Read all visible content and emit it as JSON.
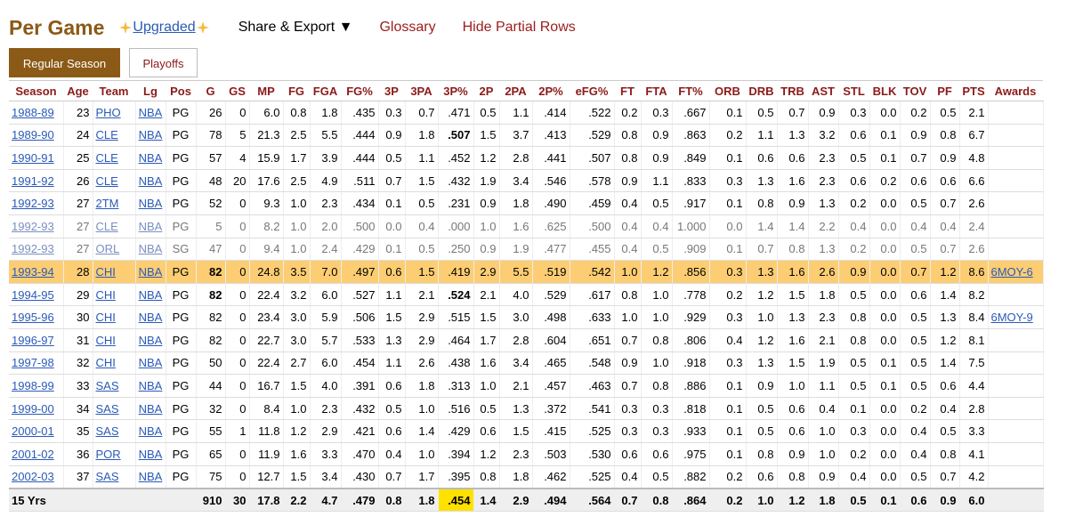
{
  "header": {
    "title": "Per Game",
    "upgraded": "Upgraded",
    "menu": [
      "Share & Export ▼",
      "Glossary",
      "Hide Partial Rows"
    ]
  },
  "tabs": [
    "Regular Season",
    "Playoffs"
  ],
  "table": {
    "columns": [
      "Season",
      "Age",
      "Team",
      "Lg",
      "Pos",
      "G",
      "GS",
      "MP",
      "FG",
      "FGA",
      "FG%",
      "3P",
      "3PA",
      "3P%",
      "2P",
      "2PA",
      "2P%",
      "eFG%",
      "FT",
      "FTA",
      "FT%",
      "ORB",
      "DRB",
      "TRB",
      "AST",
      "STL",
      "BLK",
      "TOV",
      "PF",
      "PTS",
      "Awards"
    ],
    "rows": [
      {
        "cells": [
          "1988-89",
          "23",
          "PHO",
          "NBA",
          "PG",
          "26",
          "0",
          "6.0",
          "0.8",
          "1.8",
          ".435",
          "0.3",
          "0.7",
          ".471",
          "0.5",
          "1.1",
          ".414",
          ".522",
          "0.2",
          "0.3",
          ".667",
          "0.1",
          "0.5",
          "0.7",
          "0.9",
          "0.3",
          "0.0",
          "0.2",
          "0.5",
          "2.1"
        ]
      },
      {
        "cells": [
          "1989-90",
          "24",
          "CLE",
          "NBA",
          "PG",
          "78",
          "5",
          "21.3",
          "2.5",
          "5.5",
          ".444",
          "0.9",
          "1.8",
          ".507",
          "1.5",
          "3.7",
          ".413",
          ".529",
          "0.8",
          "0.9",
          ".863",
          "0.2",
          "1.1",
          "1.3",
          "3.2",
          "0.6",
          "0.1",
          "0.9",
          "0.8",
          "6.7"
        ],
        "bold": [
          13
        ]
      },
      {
        "cells": [
          "1990-91",
          "25",
          "CLE",
          "NBA",
          "PG",
          "57",
          "4",
          "15.9",
          "1.7",
          "3.9",
          ".444",
          "0.5",
          "1.1",
          ".452",
          "1.2",
          "2.8",
          ".441",
          ".507",
          "0.8",
          "0.9",
          ".849",
          "0.1",
          "0.6",
          "0.6",
          "2.3",
          "0.5",
          "0.1",
          "0.7",
          "0.9",
          "4.8"
        ]
      },
      {
        "cells": [
          "1991-92",
          "26",
          "CLE",
          "NBA",
          "PG",
          "48",
          "20",
          "17.6",
          "2.5",
          "4.9",
          ".511",
          "0.7",
          "1.5",
          ".432",
          "1.9",
          "3.4",
          ".546",
          ".578",
          "0.9",
          "1.1",
          ".833",
          "0.3",
          "1.3",
          "1.6",
          "2.3",
          "0.6",
          "0.2",
          "0.6",
          "0.6",
          "6.6"
        ]
      },
      {
        "cells": [
          "1992-93",
          "27",
          "2TM",
          "NBA",
          "PG",
          "52",
          "0",
          "9.3",
          "1.0",
          "2.3",
          ".434",
          "0.1",
          "0.5",
          ".231",
          "0.9",
          "1.8",
          ".490",
          ".459",
          "0.4",
          "0.5",
          ".917",
          "0.1",
          "0.8",
          "0.9",
          "1.3",
          "0.2",
          "0.0",
          "0.5",
          "0.7",
          "2.6"
        ]
      },
      {
        "cells": [
          "1992-93",
          "27",
          "CLE",
          "NBA",
          "PG",
          "5",
          "0",
          "8.2",
          "1.0",
          "2.0",
          ".500",
          "0.0",
          "0.4",
          ".000",
          "1.0",
          "1.6",
          ".625",
          ".500",
          "0.4",
          "0.4",
          "1.000",
          "0.0",
          "1.4",
          "1.4",
          "2.2",
          "0.4",
          "0.0",
          "0.4",
          "0.4",
          "2.4"
        ],
        "partial": true
      },
      {
        "cells": [
          "1992-93",
          "27",
          "ORL",
          "NBA",
          "SG",
          "47",
          "0",
          "9.4",
          "1.0",
          "2.4",
          ".429",
          "0.1",
          "0.5",
          ".250",
          "0.9",
          "1.9",
          ".477",
          ".455",
          "0.4",
          "0.5",
          ".909",
          "0.1",
          "0.7",
          "0.8",
          "1.3",
          "0.2",
          "0.0",
          "0.5",
          "0.7",
          "2.6"
        ],
        "partial": true
      },
      {
        "cells": [
          "1993-94",
          "28",
          "CHI",
          "NBA",
          "PG",
          "82",
          "0",
          "24.8",
          "3.5",
          "7.0",
          ".497",
          "0.6",
          "1.5",
          ".419",
          "2.9",
          "5.5",
          ".519",
          ".542",
          "1.0",
          "1.2",
          ".856",
          "0.3",
          "1.3",
          "1.6",
          "2.6",
          "0.9",
          "0.0",
          "0.7",
          "1.2",
          "8.6",
          "6MOY-6"
        ],
        "bold": [
          5
        ],
        "highlight": true
      },
      {
        "cells": [
          "1994-95",
          "29",
          "CHI",
          "NBA",
          "PG",
          "82",
          "0",
          "22.4",
          "3.2",
          "6.0",
          ".527",
          "1.1",
          "2.1",
          ".524",
          "2.1",
          "4.0",
          ".529",
          ".617",
          "0.8",
          "1.0",
          ".778",
          "0.2",
          "1.2",
          "1.5",
          "1.8",
          "0.5",
          "0.0",
          "0.6",
          "1.4",
          "8.2"
        ],
        "bold": [
          5,
          13
        ]
      },
      {
        "cells": [
          "1995-96",
          "30",
          "CHI",
          "NBA",
          "PG",
          "82",
          "0",
          "23.4",
          "3.0",
          "5.9",
          ".506",
          "1.5",
          "2.9",
          ".515",
          "1.5",
          "3.0",
          ".498",
          ".633",
          "1.0",
          "1.0",
          ".929",
          "0.3",
          "1.0",
          "1.3",
          "2.3",
          "0.8",
          "0.0",
          "0.5",
          "1.3",
          "8.4",
          "6MOY-9"
        ]
      },
      {
        "cells": [
          "1996-97",
          "31",
          "CHI",
          "NBA",
          "PG",
          "82",
          "0",
          "22.7",
          "3.0",
          "5.7",
          ".533",
          "1.3",
          "2.9",
          ".464",
          "1.7",
          "2.8",
          ".604",
          ".651",
          "0.7",
          "0.8",
          ".806",
          "0.4",
          "1.2",
          "1.6",
          "2.1",
          "0.8",
          "0.0",
          "0.5",
          "1.2",
          "8.1"
        ]
      },
      {
        "cells": [
          "1997-98",
          "32",
          "CHI",
          "NBA",
          "PG",
          "50",
          "0",
          "22.4",
          "2.7",
          "6.0",
          ".454",
          "1.1",
          "2.6",
          ".438",
          "1.6",
          "3.4",
          ".465",
          ".548",
          "0.9",
          "1.0",
          ".918",
          "0.3",
          "1.3",
          "1.5",
          "1.9",
          "0.5",
          "0.1",
          "0.5",
          "1.4",
          "7.5"
        ]
      },
      {
        "cells": [
          "1998-99",
          "33",
          "SAS",
          "NBA",
          "PG",
          "44",
          "0",
          "16.7",
          "1.5",
          "4.0",
          ".391",
          "0.6",
          "1.8",
          ".313",
          "1.0",
          "2.1",
          ".457",
          ".463",
          "0.7",
          "0.8",
          ".886",
          "0.1",
          "0.9",
          "1.0",
          "1.1",
          "0.5",
          "0.1",
          "0.5",
          "0.6",
          "4.4"
        ]
      },
      {
        "cells": [
          "1999-00",
          "34",
          "SAS",
          "NBA",
          "PG",
          "32",
          "0",
          "8.4",
          "1.0",
          "2.3",
          ".432",
          "0.5",
          "1.0",
          ".516",
          "0.5",
          "1.3",
          ".372",
          ".541",
          "0.3",
          "0.3",
          ".818",
          "0.1",
          "0.5",
          "0.6",
          "0.4",
          "0.1",
          "0.0",
          "0.2",
          "0.4",
          "2.8"
        ]
      },
      {
        "cells": [
          "2000-01",
          "35",
          "SAS",
          "NBA",
          "PG",
          "55",
          "1",
          "11.8",
          "1.2",
          "2.9",
          ".421",
          "0.6",
          "1.4",
          ".429",
          "0.6",
          "1.5",
          ".415",
          ".525",
          "0.3",
          "0.3",
          ".933",
          "0.1",
          "0.5",
          "0.6",
          "1.0",
          "0.3",
          "0.0",
          "0.4",
          "0.5",
          "3.3"
        ]
      },
      {
        "cells": [
          "2001-02",
          "36",
          "POR",
          "NBA",
          "PG",
          "65",
          "0",
          "11.9",
          "1.6",
          "3.3",
          ".470",
          "0.4",
          "1.0",
          ".394",
          "1.2",
          "2.3",
          ".503",
          ".530",
          "0.6",
          "0.6",
          ".975",
          "0.1",
          "0.8",
          "0.9",
          "1.0",
          "0.2",
          "0.0",
          "0.4",
          "0.8",
          "4.1"
        ]
      },
      {
        "cells": [
          "2002-03",
          "37",
          "SAS",
          "NBA",
          "PG",
          "75",
          "0",
          "12.7",
          "1.5",
          "3.4",
          ".430",
          "0.7",
          "1.7",
          ".395",
          "0.8",
          "1.8",
          ".462",
          ".525",
          "0.4",
          "0.5",
          ".882",
          "0.2",
          "0.6",
          "0.8",
          "0.9",
          "0.4",
          "0.0",
          "0.5",
          "0.7",
          "4.2"
        ]
      }
    ],
    "footer": {
      "label": "15 Yrs",
      "cells": [
        "910",
        "30",
        "17.8",
        "2.2",
        "4.7",
        ".479",
        "0.8",
        "1.8",
        ".454",
        "1.4",
        "2.9",
        ".494",
        ".564",
        "0.7",
        "0.8",
        ".864",
        "0.2",
        "1.0",
        "1.2",
        "1.8",
        "0.5",
        "0.1",
        "0.6",
        "0.9",
        "6.0"
      ],
      "highlight": [
        8
      ]
    }
  }
}
